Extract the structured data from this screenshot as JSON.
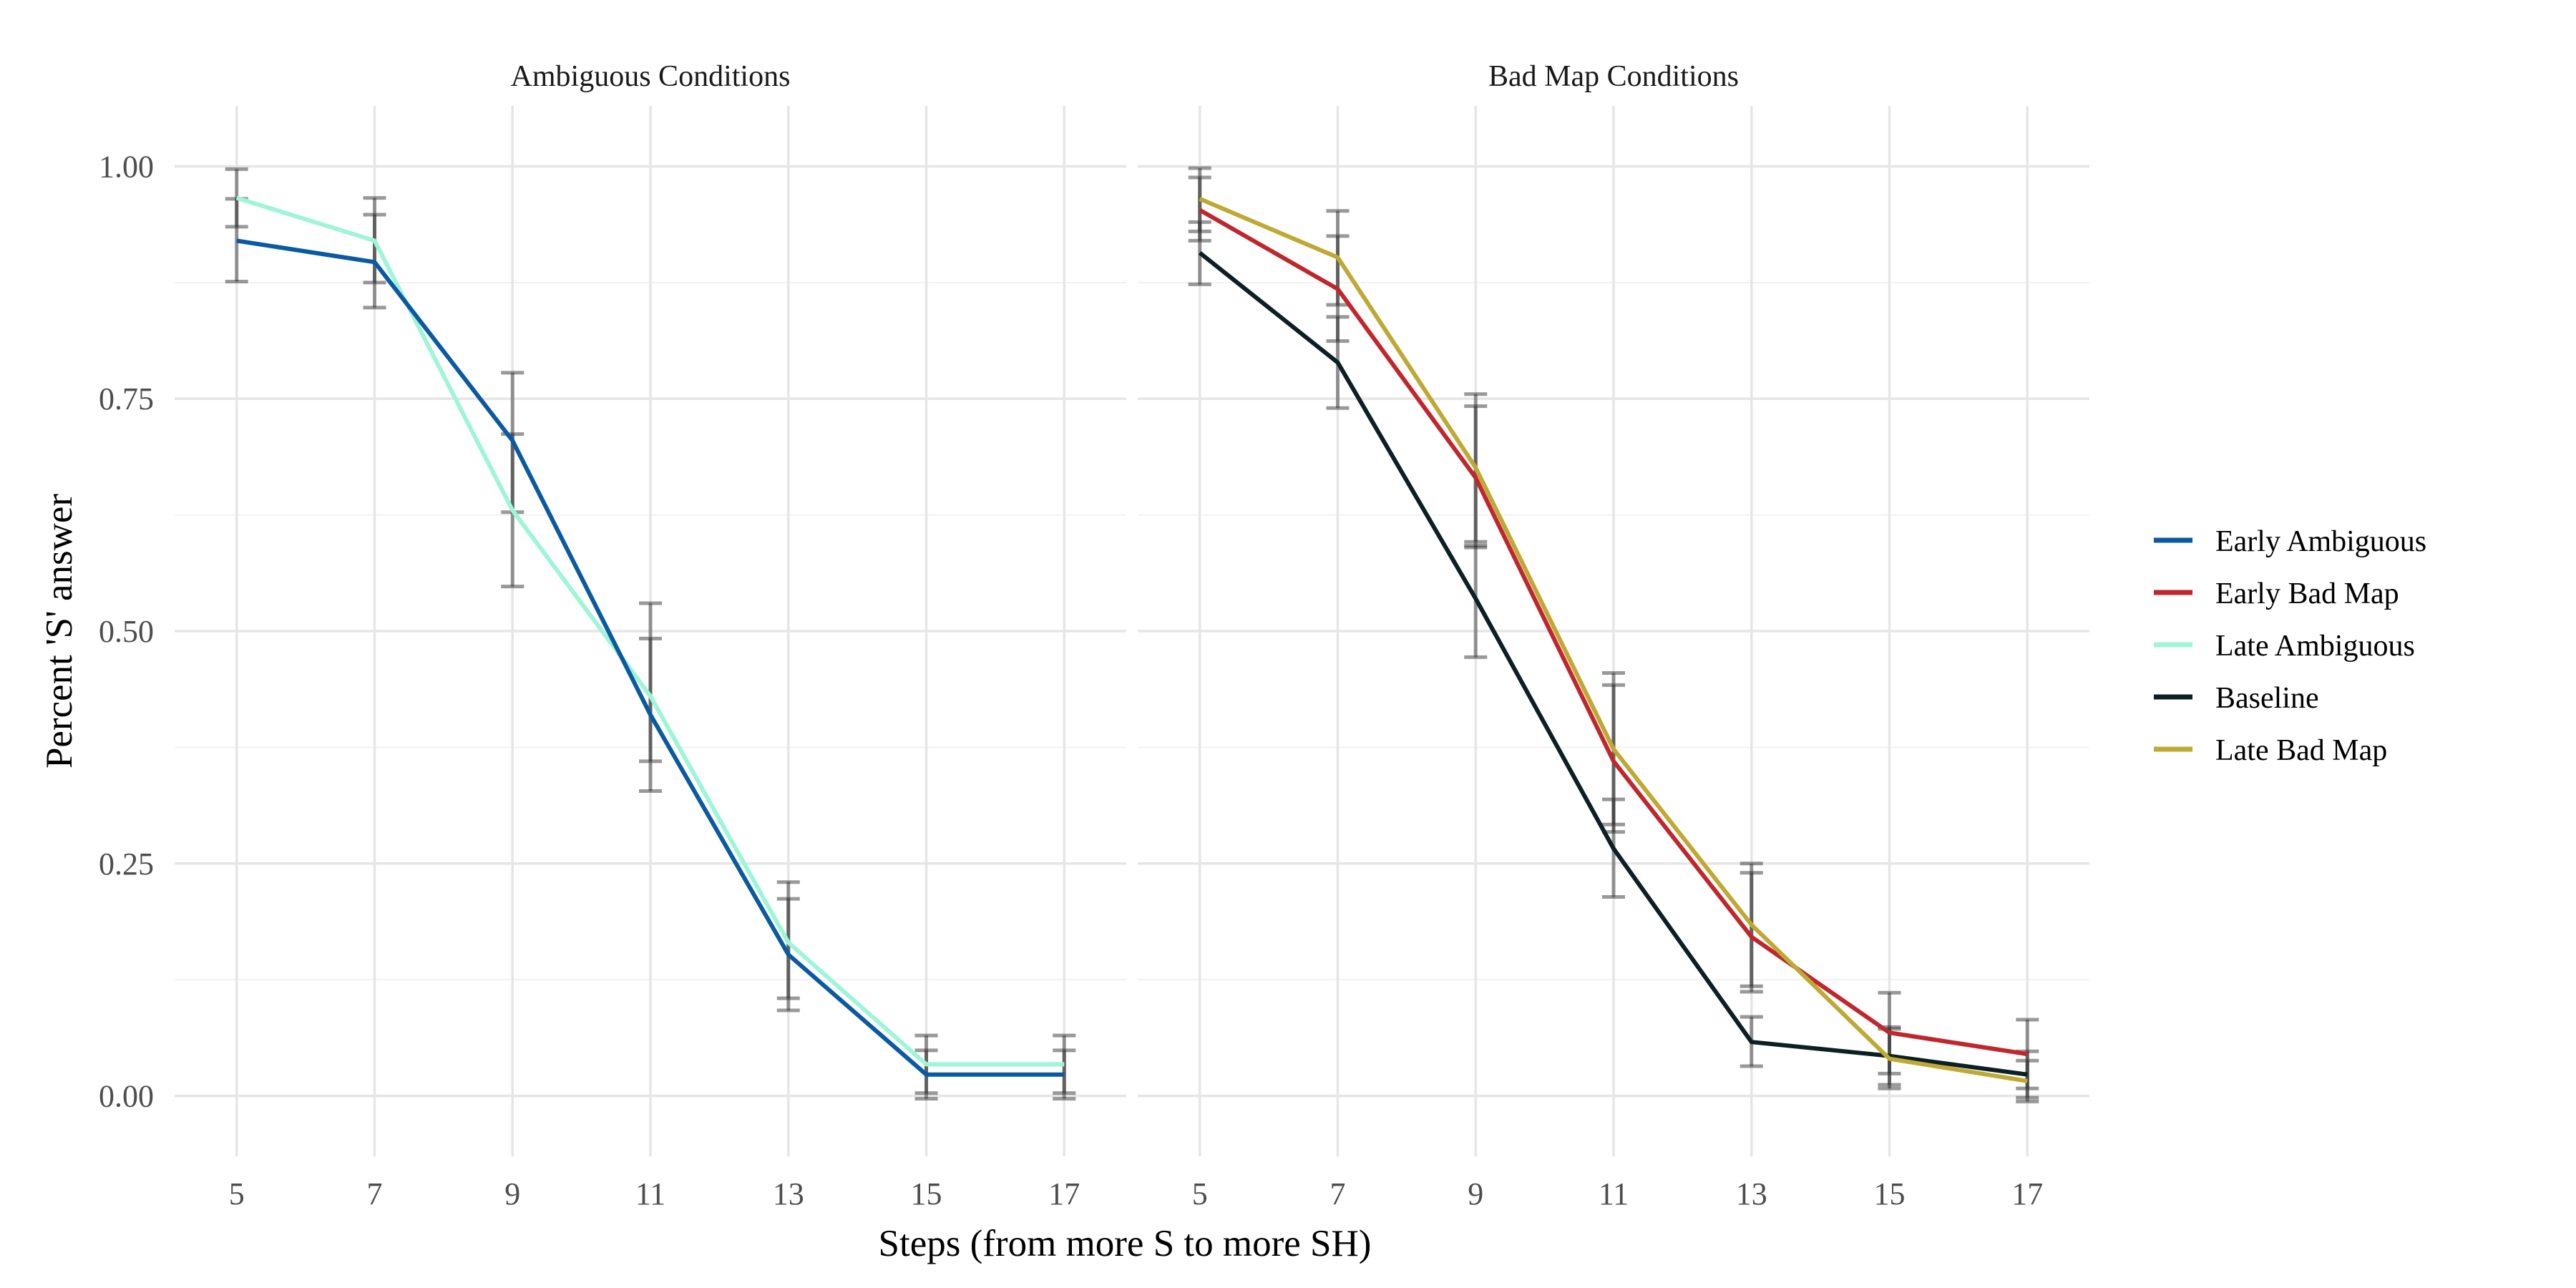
{
  "chart_data": {
    "type": "line",
    "xlabel": "Steps (from more S to more SH)",
    "ylabel": "Percent 'S' answer",
    "x_ticks": [
      5,
      7,
      9,
      11,
      13,
      15,
      17
    ],
    "y_ticks": [
      0,
      0.25,
      0.5,
      0.75,
      1
    ],
    "y_tick_labels": [
      "0.00",
      "0.25",
      "0.50",
      "0.75",
      "1.00"
    ],
    "xlim": [
      4.1,
      17.9
    ],
    "ylim": [
      -0.065,
      1.065
    ],
    "grid": true,
    "legend_position": "right",
    "legend": [
      {
        "name": "Early Ambiguous",
        "color": "#0a5aa1"
      },
      {
        "name": "Early Bad Map",
        "color": "#c0272d"
      },
      {
        "name": "Late Ambiguous",
        "color": "#9ff5d7"
      },
      {
        "name": "Baseline",
        "color": "#0b1f24"
      },
      {
        "name": "Late Bad Map",
        "color": "#bfa935"
      }
    ],
    "panels": [
      {
        "title": "Ambiguous Conditions",
        "series": [
          {
            "name": "Late Ambiguous",
            "color": "#9ff5d7",
            "x": [
              5,
              7,
              9,
              11,
              13,
              15,
              17
            ],
            "y": [
              0.966,
              0.92,
              0.63,
              0.43,
              0.165,
              0.034,
              0.034
            ],
            "error_low": [
              0.935,
              0.875,
              0.548,
              0.328,
              0.105,
              0.003,
              0.003
            ],
            "error_high": [
              0.997,
              0.966,
              0.712,
              0.53,
              0.23,
              0.065,
              0.065
            ]
          },
          {
            "name": "Early Ambiguous",
            "color": "#0a5aa1",
            "x": [
              5,
              7,
              9,
              11,
              13,
              15,
              17
            ],
            "y": [
              0.92,
              0.897,
              0.705,
              0.41,
              0.152,
              0.023,
              0.023
            ],
            "error_low": [
              0.876,
              0.848,
              0.628,
              0.36,
              0.092,
              -0.003,
              -0.003
            ],
            "error_high": [
              0.965,
              0.948,
              0.778,
              0.492,
              0.212,
              0.049,
              0.049
            ]
          }
        ]
      },
      {
        "title": "Bad Map Conditions",
        "series": [
          {
            "name": "Baseline",
            "color": "#0b1f24",
            "x": [
              5,
              7,
              9,
              11,
              13,
              15,
              17
            ],
            "y": [
              0.907,
              0.789,
              0.535,
              0.266,
              0.058,
              0.043,
              0.023
            ],
            "error_low": [
              0.873,
              0.74,
              0.472,
              0.214,
              0.032,
              0.012,
              -0.002
            ],
            "error_high": [
              0.94,
              0.838,
              0.592,
              0.319,
              0.085,
              0.074,
              0.048
            ]
          },
          {
            "name": "Early Bad Map",
            "color": "#c0272d",
            "x": [
              5,
              7,
              9,
              11,
              13,
              15,
              17
            ],
            "y": [
              0.953,
              0.868,
              0.665,
              0.36,
              0.171,
              0.068,
              0.045
            ],
            "error_low": [
              0.92,
              0.812,
              0.59,
              0.284,
              0.112,
              0.024,
              0.008
            ],
            "error_high": [
              0.988,
              0.925,
              0.742,
              0.442,
              0.24,
              0.111,
              0.082
            ]
          },
          {
            "name": "Late Bad Map",
            "color": "#bfa935",
            "x": [
              5,
              7,
              9,
              11,
              13,
              15,
              17
            ],
            "y": [
              0.965,
              0.902,
              0.676,
              0.373,
              0.184,
              0.04,
              0.016
            ],
            "error_low": [
              0.93,
              0.851,
              0.596,
              0.292,
              0.118,
              0.008,
              -0.006
            ],
            "error_high": [
              0.998,
              0.952,
              0.755,
              0.455,
              0.25,
              0.072,
              0.038
            ]
          }
        ]
      }
    ]
  }
}
